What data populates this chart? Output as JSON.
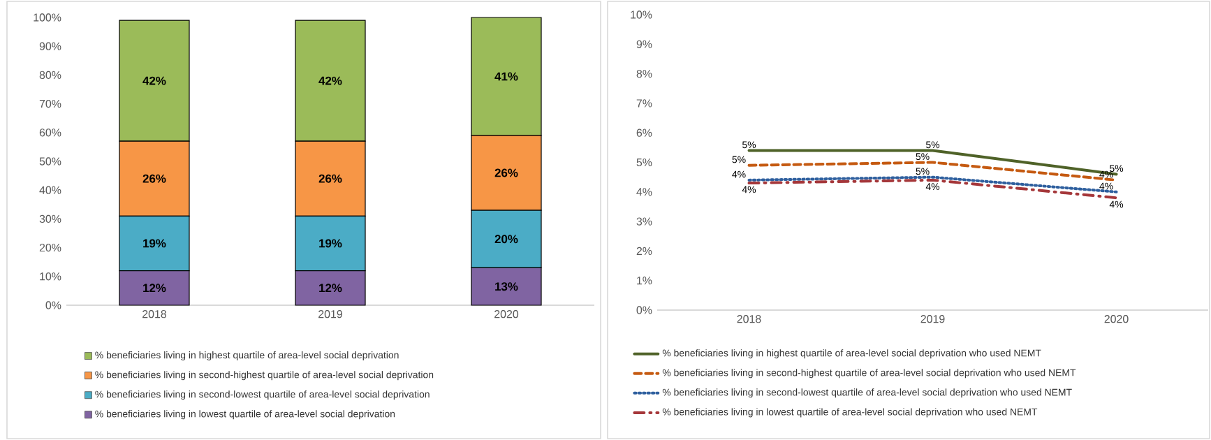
{
  "chart_data": [
    {
      "type": "bar",
      "stacked": true,
      "categories": [
        "2018",
        "2019",
        "2020"
      ],
      "ylim": [
        0,
        100
      ],
      "yticks": [
        {
          "value": 0,
          "label": "0%"
        },
        {
          "value": 10,
          "label": "10%"
        },
        {
          "value": 20,
          "label": "20%"
        },
        {
          "value": 30,
          "label": "30%"
        },
        {
          "value": 40,
          "label": "40%"
        },
        {
          "value": 50,
          "label": "50%"
        },
        {
          "value": 60,
          "label": "60%"
        },
        {
          "value": 70,
          "label": "70%"
        },
        {
          "value": 80,
          "label": "80%"
        },
        {
          "value": 90,
          "label": "90%"
        },
        {
          "value": 100,
          "label": "100%"
        }
      ],
      "legend": "bottom",
      "series": [
        {
          "name": "% beneficiaries living in lowest quartile of area-level social deprivation",
          "color": "#8064a2",
          "values": [
            12,
            12,
            13
          ],
          "value_labels": [
            "12%",
            "12%",
            "13%"
          ]
        },
        {
          "name": "% beneficiaries living in second-lowest quartile of area-level social deprivation",
          "color": "#4bacc6",
          "values": [
            19,
            19,
            20
          ],
          "value_labels": [
            "19%",
            "19%",
            "20%"
          ]
        },
        {
          "name": "% beneficiaries living in second-highest quartile of area-level social deprivation",
          "color": "#f79646",
          "values": [
            26,
            26,
            26
          ],
          "value_labels": [
            "26%",
            "26%",
            "26%"
          ]
        },
        {
          "name": "% beneficiaries living in highest quartile of area-level social deprivation",
          "color": "#9bbb59",
          "values": [
            42,
            42,
            41
          ],
          "value_labels": [
            "42%",
            "42%",
            "41%"
          ]
        }
      ]
    },
    {
      "type": "line",
      "categories": [
        "2018",
        "2019",
        "2020"
      ],
      "ylim": [
        0,
        10
      ],
      "yticks": [
        {
          "value": 0,
          "label": "0%"
        },
        {
          "value": 1,
          "label": "1%"
        },
        {
          "value": 2,
          "label": "2%"
        },
        {
          "value": 3,
          "label": "3%"
        },
        {
          "value": 4,
          "label": "4%"
        },
        {
          "value": 5,
          "label": "5%"
        },
        {
          "value": 6,
          "label": "6%"
        },
        {
          "value": 7,
          "label": "7%"
        },
        {
          "value": 8,
          "label": "8%"
        },
        {
          "value": 9,
          "label": "9%"
        },
        {
          "value": 10,
          "label": "10%"
        }
      ],
      "legend": "bottom",
      "series": [
        {
          "name": "% beneficiaries living in highest quartile of area-level social deprivation who used NEMT",
          "color": "#4f6228",
          "line_style": "solid",
          "values": [
            5.4,
            5.4,
            4.6
          ],
          "value_labels": [
            "5%",
            "5%",
            "5%"
          ]
        },
        {
          "name": "% beneficiaries living in second-highest quartile of area-level social deprivation who used NEMT",
          "color": "#c55a11",
          "line_style": "dashed",
          "values": [
            4.9,
            5.0,
            4.4
          ],
          "value_labels": [
            "5%",
            "5%",
            "4%"
          ]
        },
        {
          "name": "% beneficiaries living in second-lowest quartile of area-level social deprivation who used NEMT",
          "color": "#2e5f9e",
          "line_style": "dotted",
          "values": [
            4.4,
            4.5,
            4.0
          ],
          "value_labels": [
            "4%",
            "5%",
            "4%"
          ]
        },
        {
          "name": "% beneficiaries living in lowest quartile of area-level social deprivation who used NEMT",
          "color": "#a5373a",
          "line_style": "dashdot",
          "values": [
            4.3,
            4.4,
            3.8
          ],
          "value_labels": [
            "4%",
            "4%",
            "4%"
          ]
        }
      ]
    }
  ]
}
